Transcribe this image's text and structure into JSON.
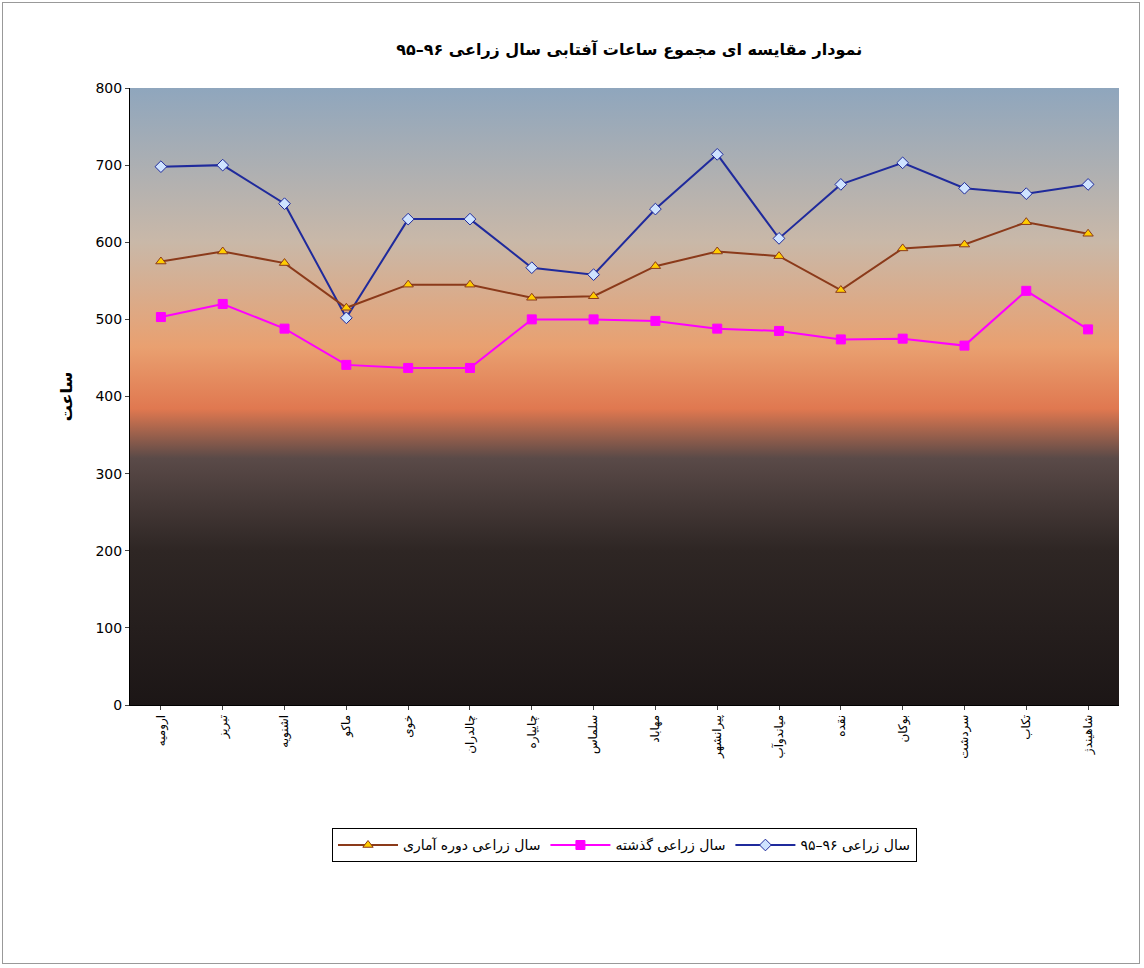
{
  "chart_data": {
    "type": "line",
    "title": "نمودار مقایسه ای مجموع ساعات آفتابی سال زراعی ۹۶–۹۵",
    "y_label": "ساعت",
    "categories": [
      "ارومیه",
      "تبریز",
      "اشنویه",
      "ماکو",
      "خوی",
      "چالدران",
      "چایپاره",
      "سلماس",
      "مهاباد",
      "پیرانشهر",
      "میاندوآب",
      "نقده",
      "بوکان",
      "سردشت",
      "تکاب",
      "شاهیندژ"
    ],
    "series": [
      {
        "name": "سال زراعی ۹۶–۹۵",
        "color": "#1f2a9c",
        "marker": "diamond",
        "values": [
          698,
          700,
          650,
          502,
          630,
          630,
          567,
          558,
          643,
          714,
          605,
          675,
          703,
          670,
          663,
          675
        ]
      },
      {
        "name": "سال زراعی گذشته",
        "color": "#ff00ff",
        "marker": "square",
        "values": [
          503,
          520,
          488,
          441,
          437,
          437,
          500,
          500,
          498,
          488,
          485,
          474,
          475,
          466,
          537,
          487
        ]
      },
      {
        "name": "سال زراعی دوره آماری",
        "color": "#8b3a1a",
        "marker": "triangle-up",
        "values": [
          575,
          588,
          573,
          515,
          545,
          545,
          528,
          530,
          569,
          588,
          582,
          538,
          592,
          597,
          626,
          611
        ]
      }
    ],
    "ylim": [
      0,
      800
    ],
    "yticks": [
      0,
      100,
      200,
      300,
      400,
      500,
      600,
      700,
      800
    ],
    "grid": false,
    "legend": "bottom"
  }
}
